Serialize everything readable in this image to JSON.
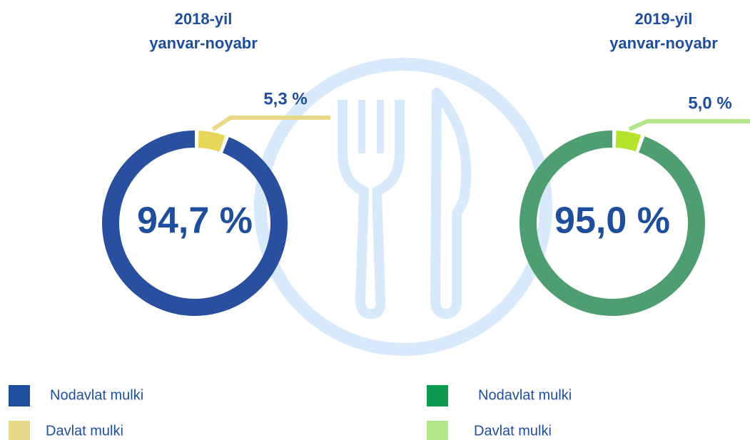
{
  "chart_data": [
    {
      "type": "pie",
      "title": "2018-yil",
      "subtitle": "yanvar-noyabr",
      "categories": [
        "Nodavlat mulki",
        "Davlat mulki"
      ],
      "values": [
        94.7,
        5.3
      ],
      "value_labels": [
        "94,7 %",
        "5,3 %"
      ],
      "colors": [
        "#2a4f9f",
        "#e6d65a"
      ],
      "legend_colors": [
        "#1f4e9c",
        "#e8d98a"
      ]
    },
    {
      "type": "pie",
      "title": "2019-yil",
      "subtitle": "yanvar-noyabr",
      "categories": [
        "Nodavlat mulki",
        "Davlat mulki"
      ],
      "values": [
        95.0,
        5.0
      ],
      "value_labels": [
        "95,0 %",
        "5,0 %"
      ],
      "colors": [
        "#4f9e72",
        "#b5e22a"
      ],
      "legend_colors": [
        "#0d9a4e",
        "#b3e68a"
      ]
    }
  ]
}
